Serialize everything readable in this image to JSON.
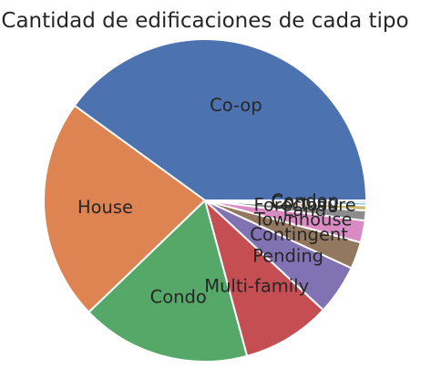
{
  "chart_data": {
    "type": "pie",
    "title": "Cantidad de edificaciones de cada tipo",
    "start_angle_deg": 0,
    "direction": "counterclockwise",
    "slices": [
      {
        "label": "Co-op",
        "value": 40.0,
        "color": "#4c72b0"
      },
      {
        "label": "House",
        "value": 22.2,
        "color": "#dd8452"
      },
      {
        "label": "Condo",
        "value": 17.0,
        "color": "#55a868"
      },
      {
        "label": "Multi-family",
        "value": 8.9,
        "color": "#c44e52"
      },
      {
        "label": "Pending",
        "value": 5.0,
        "color": "#8172b3"
      },
      {
        "label": "Contingent",
        "value": 2.7,
        "color": "#937860"
      },
      {
        "label": "Townhouse",
        "value": 2.2,
        "color": "#da8bc3"
      },
      {
        "label": "Land",
        "value": 1.0,
        "color": "#8c8c8c"
      },
      {
        "label": "Foreclosure",
        "value": 0.5,
        "color": "#ccb974"
      },
      {
        "label": "Coming",
        "value": 0.3,
        "color": "#64b5cd"
      },
      {
        "label": "Condop",
        "value": 0.2,
        "color": "#4c72b0"
      }
    ]
  }
}
